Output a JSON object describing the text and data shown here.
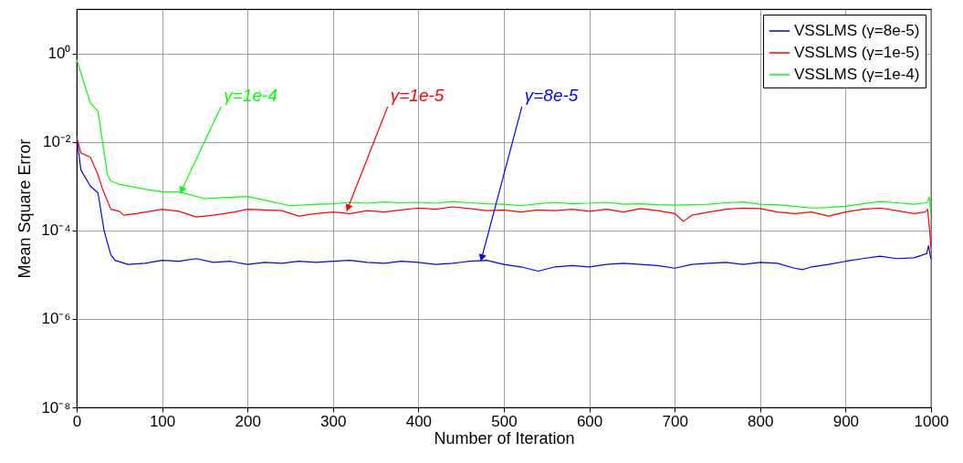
{
  "chart_data": {
    "type": "line",
    "xlabel": "Number of Iteration",
    "ylabel": "Mean Square Error",
    "xlim": [
      0,
      1000
    ],
    "xticks": [
      0,
      100,
      200,
      300,
      400,
      500,
      600,
      700,
      800,
      900,
      1000
    ],
    "ylim": [
      1e-08,
      10
    ],
    "yticks": [
      {
        "value": 1e-08,
        "label": "10⁻⁸"
      },
      {
        "value": 1e-06,
        "label": "10⁻⁶"
      },
      {
        "value": 0.0001,
        "label": "10⁻⁴"
      },
      {
        "value": 0.01,
        "label": "10⁻²"
      },
      {
        "value": 1,
        "label": "10⁰"
      }
    ],
    "log": "y",
    "grid": true,
    "legend": "top right",
    "marker": "none",
    "line_style": "solid",
    "series": [
      {
        "name": "VSSLMS (γ=8e-5)",
        "color": "#0000ff",
        "x": [
          0,
          5,
          16,
          25,
          32,
          40,
          45,
          60,
          80,
          100,
          120,
          140,
          160,
          180,
          200,
          220,
          240,
          260,
          280,
          300,
          320,
          340,
          360,
          380,
          400,
          420,
          440,
          460,
          480,
          500,
          520,
          540,
          560,
          580,
          600,
          620,
          640,
          660,
          680,
          700,
          720,
          740,
          760,
          780,
          800,
          820,
          840,
          850,
          860,
          880,
          900,
          920,
          940,
          960,
          980,
          995,
          997,
          1000
        ],
        "values": [
          0.013,
          0.0023,
          0.001,
          0.0007,
          0.0001,
          2.8e-05,
          2.1e-05,
          1.7e-05,
          1.8e-05,
          2.1e-05,
          2e-05,
          2.3e-05,
          1.9e-05,
          2e-05,
          1.7e-05,
          1.9e-05,
          1.8e-05,
          2e-05,
          1.9e-05,
          2e-05,
          2.1e-05,
          1.9e-05,
          1.8e-05,
          2e-05,
          1.9e-05,
          1.7e-05,
          1.8e-05,
          2e-05,
          2.1e-05,
          1.7e-05,
          1.5e-05,
          1.2e-05,
          1.5e-05,
          1.6e-05,
          1.5e-05,
          1.7e-05,
          1.8e-05,
          1.7e-05,
          1.6e-05,
          1.4e-05,
          1.7e-05,
          1.8e-05,
          1.9e-05,
          1.7e-05,
          1.9e-05,
          1.8e-05,
          1.4e-05,
          1.3e-05,
          1.5e-05,
          1.7e-05,
          2e-05,
          2.3e-05,
          2.6e-05,
          2.3e-05,
          2.4e-05,
          3e-05,
          4.5e-05,
          2.2e-05
        ]
      },
      {
        "name": "VSSLMS (γ=1e-5)",
        "color": "#ff0000",
        "x": [
          0,
          5,
          16,
          25,
          30,
          40,
          50,
          55,
          70,
          100,
          120,
          140,
          160,
          180,
          200,
          220,
          240,
          260,
          280,
          300,
          320,
          340,
          360,
          380,
          400,
          420,
          440,
          460,
          480,
          500,
          520,
          540,
          560,
          580,
          600,
          620,
          640,
          660,
          680,
          700,
          710,
          720,
          740,
          760,
          780,
          800,
          820,
          840,
          860,
          880,
          900,
          920,
          940,
          960,
          980,
          993,
          996,
          998,
          1000
        ],
        "values": [
          0.013,
          0.0056,
          0.0045,
          0.0018,
          0.00089,
          0.0003,
          0.00027,
          0.00022,
          0.00024,
          0.0003,
          0.00027,
          0.0002,
          0.00022,
          0.00025,
          0.0003,
          0.00029,
          0.00028,
          0.00021,
          0.00024,
          0.00026,
          0.00024,
          0.00028,
          0.00026,
          0.00029,
          0.00032,
          0.0003,
          0.00034,
          0.00031,
          0.00028,
          0.00029,
          0.00026,
          0.00029,
          0.00028,
          0.0003,
          0.00027,
          0.0003,
          0.00026,
          0.00031,
          0.00028,
          0.00024,
          0.00016,
          0.00022,
          0.00026,
          0.0003,
          0.00032,
          0.00031,
          0.00026,
          0.00024,
          0.00026,
          0.00021,
          0.00026,
          0.0003,
          0.00032,
          0.00028,
          0.00024,
          0.00026,
          0.0003,
          0.00012,
          3.8e-05
        ]
      },
      {
        "name": "VSSLMS (γ=1e-4)",
        "color": "#00ff00",
        "x": [
          0,
          16,
          25,
          36,
          40,
          50,
          80,
          100,
          120,
          150,
          170,
          200,
          220,
          250,
          280,
          300,
          320,
          340,
          360,
          380,
          400,
          420,
          440,
          460,
          480,
          500,
          520,
          540,
          560,
          580,
          600,
          620,
          640,
          660,
          680,
          700,
          720,
          740,
          760,
          780,
          800,
          820,
          840,
          860,
          880,
          900,
          920,
          940,
          960,
          980,
          995,
          998,
          1000
        ],
        "values": [
          0.73,
          0.076,
          0.049,
          0.0018,
          0.0013,
          0.0011,
          0.00085,
          0.00075,
          0.00074,
          0.00052,
          0.00055,
          0.00058,
          0.00048,
          0.00036,
          0.00039,
          0.0004,
          0.00043,
          0.00041,
          0.00044,
          0.00042,
          0.00043,
          0.00041,
          0.00045,
          0.00042,
          0.0004,
          0.00039,
          0.00036,
          0.0004,
          0.00043,
          0.0004,
          0.00041,
          0.00043,
          0.00039,
          0.0004,
          0.00038,
          0.00037,
          0.00038,
          0.00039,
          0.00042,
          0.00044,
          0.00039,
          0.00038,
          0.00035,
          0.00032,
          0.00033,
          0.00035,
          0.0004,
          0.00045,
          0.00042,
          0.00039,
          0.00042,
          0.00056,
          0.00024
        ]
      }
    ],
    "annotations": [
      {
        "text": "γ=8e-5",
        "x": 473,
        "y": 2e-05
      },
      {
        "text": "γ=1e-5",
        "x": 316,
        "y": 0.00027
      },
      {
        "text": "γ=1e-4",
        "x": 121,
        "y": 0.00068
      }
    ]
  }
}
